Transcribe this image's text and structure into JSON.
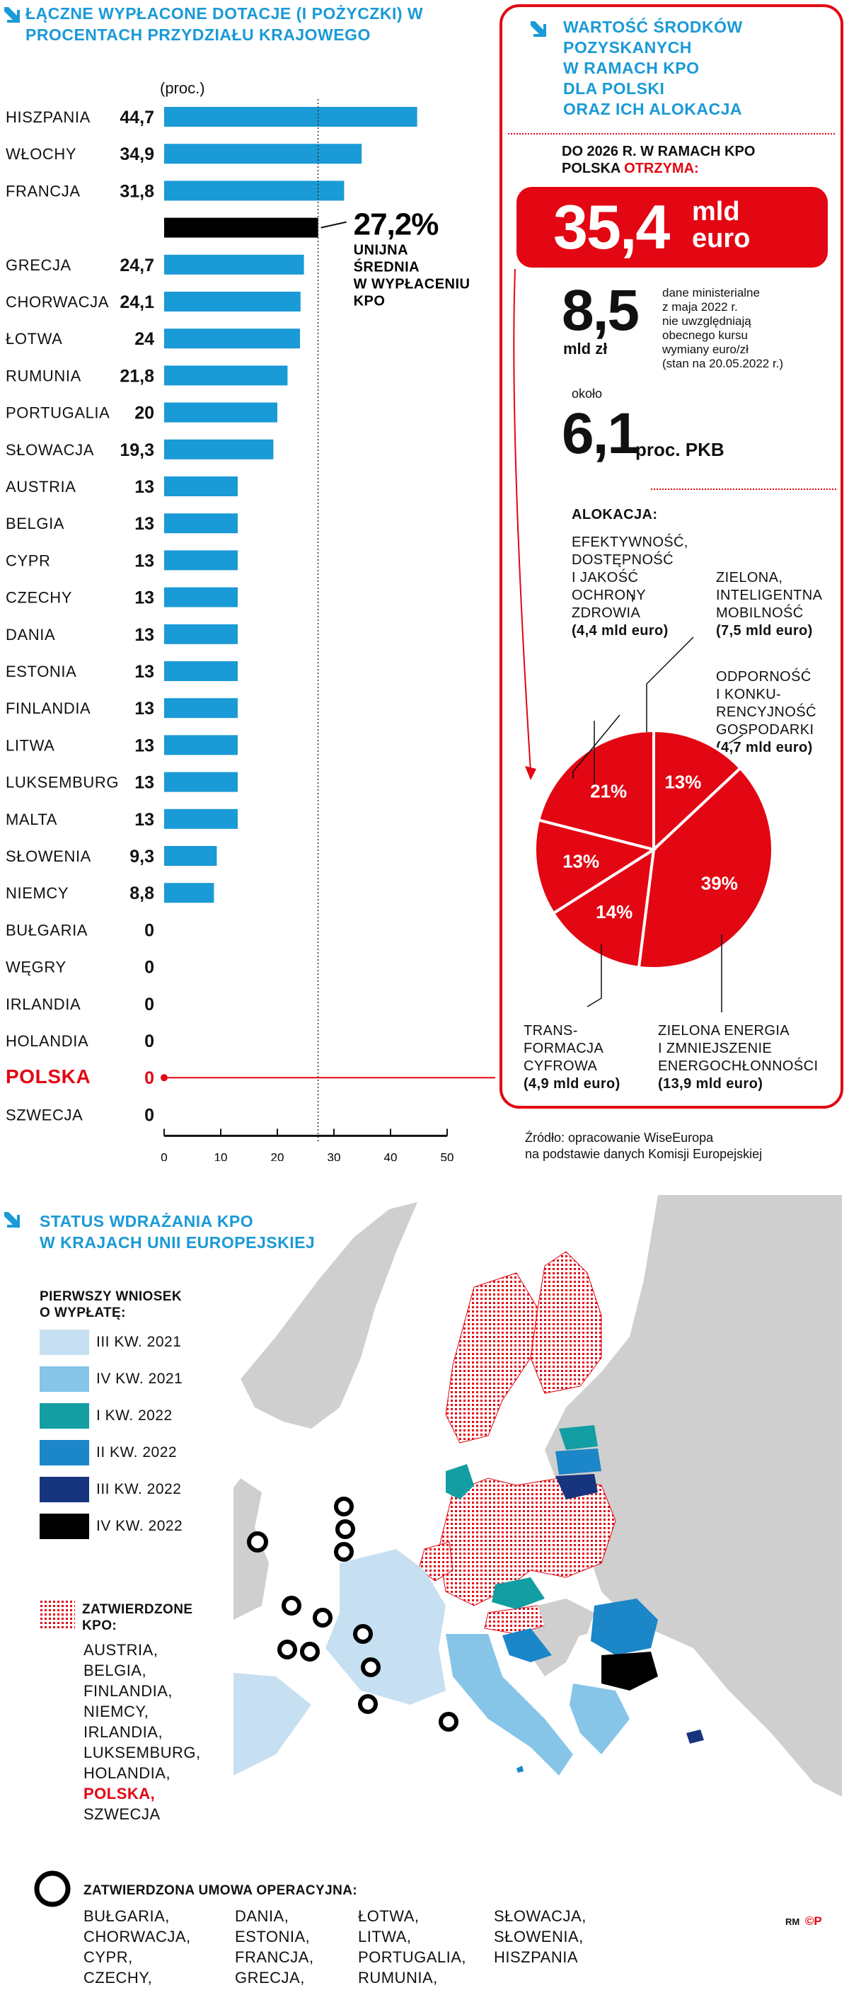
{
  "chart_data": {
    "type": "bar",
    "title": "ŁĄCZNE WYPŁACONE DOTACJE (I POŻYCZKI) W PROCENTACH PRZYDZIAŁU KRAJOWEGO",
    "unit": "(proc.)",
    "xlim": [
      0,
      50
    ],
    "ticks": [
      "0",
      "10",
      "20",
      "30",
      "40",
      "50"
    ],
    "categories": [
      "HISZPANIA",
      "WŁOCHY",
      "FRANCJA",
      "",
      "GRECJA",
      "CHORWACJA",
      "ŁOTWA",
      "RUMUNIA",
      "PORTUGALIA",
      "SŁOWACJA",
      "AUSTRIA",
      "BELGIA",
      "CYPR",
      "CZECHY",
      "DANIA",
      "ESTONIA",
      "FINLANDIA",
      "LITWA",
      "LUKSEMBURG",
      "MALTA",
      "SŁOWENIA",
      "NIEMCY",
      "BUŁGARIA",
      "WĘGRY",
      "IRLANDIA",
      "HOLANDIA",
      "POLSKA",
      "SZWECJA"
    ],
    "values": [
      44.7,
      34.9,
      31.8,
      27.2,
      24.7,
      24.1,
      24,
      21.8,
      20,
      19.3,
      13,
      13,
      13,
      13,
      13,
      13,
      13,
      13,
      13,
      13,
      9.3,
      8.8,
      0,
      0,
      0,
      0,
      0,
      0
    ],
    "value_labels": [
      "44,7",
      "34,9",
      "31,8",
      "",
      "24,7",
      "24,1",
      "24",
      "21,8",
      "20",
      "19,3",
      "13",
      "13",
      "13",
      "13",
      "13",
      "13",
      "13",
      "13",
      "13",
      "13",
      "9,3",
      "8,8",
      "0",
      "0",
      "0",
      "0",
      "0",
      "0"
    ],
    "average": {
      "value": 27.2,
      "label": "27,2%",
      "text_lines": [
        "UNIJNA",
        "ŚREDNIA",
        "W WYPŁACENIU",
        "KPO"
      ]
    },
    "highlight": "POLSKA",
    "colors": {
      "bar": "#1a9ad6",
      "average": "#000000",
      "highlight": "#e30613"
    }
  },
  "panel": {
    "title_lines": [
      "WARTOŚĆ ŚRODKÓW",
      "POZYSKANYCH",
      "W RAMACH KPO",
      "DLA POLSKI",
      "ORAZ ICH ALOKACJA"
    ],
    "intro_line1": "DO 2026 R. W RAMACH KPO",
    "intro_line2a": "POLSKA ",
    "intro_line2b": "OTRZYMA:",
    "big_amount": "35,4",
    "big_unit_line1": "mld",
    "big_unit_line2": "euro",
    "pln_amount": "8,5",
    "pln_unit": "mld zł",
    "pln_note_lines": [
      "dane ministerialne",
      "z maja 2022 r.",
      "nie uwzględniają",
      "obecnego kursu",
      "wymiany euro/zł",
      "(stan na 20.05.2022 r.)"
    ],
    "pkb_prefix": "około",
    "pkb_amount": "6,1",
    "pkb_unit": "proc. PKB",
    "alloc_title": "ALOKACJA:",
    "alloc_items": [
      {
        "lines": [
          "EFEKTYWNOŚĆ,",
          "DOSTĘPNOŚĆ",
          "I JAKOŚĆ",
          "OCHRONY",
          "ZDROWIA"
        ],
        "amount": "(4,4 mld euro)"
      },
      {
        "lines": [
          "ZIELONA,",
          "INTELIGENTNA",
          "MOBILNOŚĆ"
        ],
        "amount": "(7,5 mld euro)"
      },
      {
        "lines": [
          "ODPORNOŚĆ",
          "I KONKU-",
          "RENCYJNOŚĆ",
          "GOSPODARKI"
        ],
        "amount": "(4,7 mld euro)"
      },
      {
        "lines": [
          "TRANS-",
          "FORMACJA",
          "CYFROWA"
        ],
        "amount": "(4,9 mld euro)"
      },
      {
        "lines": [
          "ZIELONA ENERGIA",
          "I ZMNIEJSZENIE",
          "ENERGOCHŁONNOŚCI"
        ],
        "amount": "(13,9 mld euro)"
      }
    ],
    "pie": [
      {
        "label": "13%",
        "value": 13
      },
      {
        "label": "39%",
        "value": 39
      },
      {
        "label": "14%",
        "value": 14
      },
      {
        "label": "13%",
        "value": 13
      },
      {
        "label": "21%",
        "value": 21
      }
    ]
  },
  "source_lines": [
    "Źródło: opracowanie WiseEuropa",
    "na podstawie danych Komisji Europejskiej"
  ],
  "map": {
    "title_lines": [
      "STATUS WDRAŻANIA KPO",
      "W KRAJACH UNII EUROPEJSKIEJ"
    ],
    "legend_title_lines": [
      "PIERWSZY WNIOSEK",
      "O WYPŁATĘ:"
    ],
    "legend": [
      {
        "label": "III KW. 2021",
        "color": "#c6e0f2"
      },
      {
        "label": "IV KW. 2021",
        "color": "#86c5e8"
      },
      {
        "label": "I KW. 2022",
        "color": "#139ea3"
      },
      {
        "label": "II KW. 2022",
        "color": "#1b86c8"
      },
      {
        "label": "III KW. 2022",
        "color": "#17357e"
      },
      {
        "label": "IV KW. 2022",
        "color": "#000000"
      }
    ],
    "approved_title_lines": [
      "ZATWIERDZONE",
      "KPO:"
    ],
    "approved_list": [
      "AUSTRIA,",
      "BELGIA,",
      "FINLANDIA,",
      "NIEMCY,",
      "IRLANDIA,",
      "LUKSEMBURG,",
      "HOLANDIA,",
      "POLSKA,",
      "SZWECJA"
    ],
    "operational_title": "ZATWIERDZONA UMOWA OPERACYJNA:",
    "operational_cols": [
      [
        "BUŁGARIA,",
        "CHORWACJA,",
        "CYPR,",
        "CZECHY,"
      ],
      [
        "DANIA,",
        "ESTONIA,",
        "FRANCJA,",
        "GRECJA,"
      ],
      [
        "ŁOTWA,",
        "LITWA,",
        "PORTUGALIA,",
        "RUMUNIA,"
      ],
      [
        "SŁOWACJA,",
        "SŁOWENIA,",
        "HISZPANIA"
      ]
    ],
    "credit": "RM",
    "credit_logo": "©P"
  }
}
